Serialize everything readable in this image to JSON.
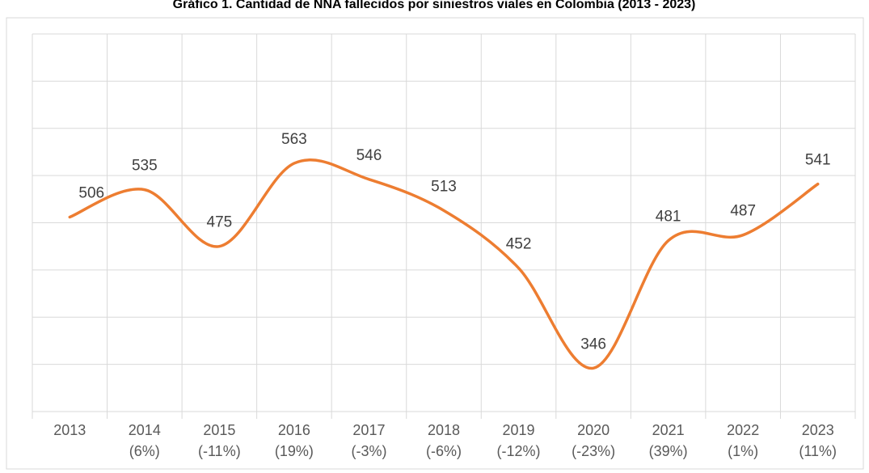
{
  "chart_data": {
    "type": "line",
    "title": "Gráfico 1. Cantidad de NNA fallecidos por siniestros viales en Colombia (2013 - 2023)",
    "categories": [
      "2013",
      "2014",
      "2015",
      "2016",
      "2017",
      "2018",
      "2019",
      "2020",
      "2021",
      "2022",
      "2023"
    ],
    "change_labels": [
      null,
      "(6%)",
      "(-11%)",
      "(19%)",
      "(-3%)",
      "(-6%)",
      "(-12%)",
      "(-23%)",
      "(39%)",
      "(1%)",
      "(11%)"
    ],
    "values": [
      506,
      535,
      475,
      563,
      546,
      513,
      452,
      346,
      481,
      487,
      541
    ],
    "color": "#ed7d31",
    "smooth": true,
    "ylim": [
      300,
      700
    ],
    "yticks": [
      300,
      350,
      400,
      450,
      500,
      550,
      600,
      650,
      700
    ],
    "grid": true
  }
}
